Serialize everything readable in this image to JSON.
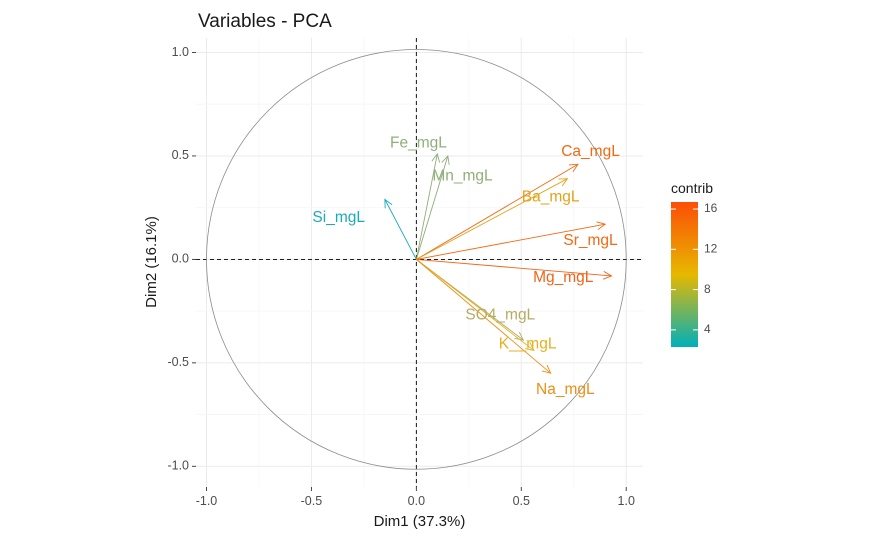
{
  "chart_data": {
    "type": "scatter",
    "title": "Variables - PCA",
    "xlabel": "Dim1 (37.3%)",
    "ylabel": "Dim2 (16.1%)",
    "xlim": [
      -1.05,
      1.08
    ],
    "ylim": [
      -1.1,
      1.07
    ],
    "xticks": [
      -1.0,
      -0.5,
      0.0,
      0.5,
      1.0
    ],
    "xtick_labels": [
      "-1.0",
      "-0.5",
      "0.0",
      "0.5",
      "1.0"
    ],
    "yticks": [
      -1.0,
      -0.5,
      0.0,
      0.5,
      1.0
    ],
    "ytick_labels": [
      "-1.0",
      "-0.5",
      "0.0",
      "0.5",
      "1.0"
    ],
    "grid": true,
    "correlation_circle": true,
    "reference_lines": [
      0,
      0
    ],
    "variables": [
      {
        "name": "Fe_mgL",
        "x": 0.1,
        "y": 0.51,
        "contrib": 6.0,
        "color": "#8FAF7A",
        "label_x": 0.01,
        "label_y": 0.56
      },
      {
        "name": "Mn_mgL",
        "x": 0.15,
        "y": 0.5,
        "contrib": 6.0,
        "color": "#8FAF7A",
        "label_x": 0.22,
        "label_y": 0.4
      },
      {
        "name": "Si_mgL",
        "x": -0.15,
        "y": 0.29,
        "contrib": 2.5,
        "color": "#1CA9BE",
        "label_x": -0.37,
        "label_y": 0.2
      },
      {
        "name": "Ca_mgL",
        "x": 0.77,
        "y": 0.46,
        "contrib": 15.5,
        "color": "#F06A13",
        "label_x": 0.83,
        "label_y": 0.52
      },
      {
        "name": "Ba_mgL",
        "x": 0.72,
        "y": 0.39,
        "contrib": 12.0,
        "color": "#E3A21A",
        "label_x": 0.64,
        "label_y": 0.3
      },
      {
        "name": "Sr_mgL",
        "x": 0.9,
        "y": 0.17,
        "contrib": 15.0,
        "color": "#F26A12",
        "label_x": 0.83,
        "label_y": 0.09
      },
      {
        "name": "Mg_mgL",
        "x": 0.93,
        "y": -0.08,
        "contrib": 15.0,
        "color": "#F06418",
        "label_x": 0.7,
        "label_y": -0.09
      },
      {
        "name": "SO4_mgL",
        "x": 0.51,
        "y": -0.39,
        "contrib": 8.0,
        "color": "#B5AC63",
        "label_x": 0.4,
        "label_y": -0.27
      },
      {
        "name": "K__mgL",
        "x": 0.56,
        "y": -0.44,
        "contrib": 10.0,
        "color": "#E7B020",
        "label_x": 0.53,
        "label_y": -0.41
      },
      {
        "name": "Na_mgL",
        "x": 0.64,
        "y": -0.55,
        "contrib": 12.5,
        "color": "#ED8E16",
        "label_x": 0.71,
        "label_y": -0.63
      }
    ],
    "legend": {
      "title": "contrib",
      "position": "right",
      "min": 2.3,
      "max": 16.7,
      "ticks": [
        4,
        8,
        12,
        16
      ],
      "tick_labels": [
        "4",
        "8",
        "12",
        "16"
      ],
      "gradient": [
        "#00AFBB",
        "#E7B800",
        "#FC4E07"
      ]
    }
  }
}
